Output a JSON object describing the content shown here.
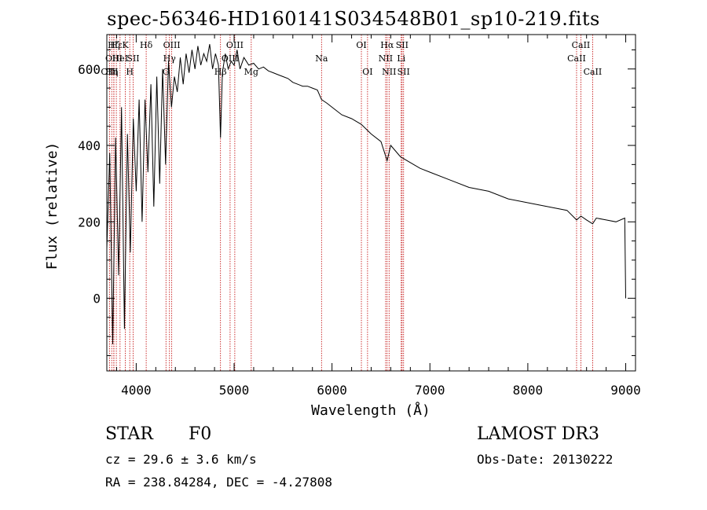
{
  "chart_data": {
    "type": "line",
    "title": "spec-56346-HD160141S034548B01_sp10-219.fits",
    "xlabel": "Wavelength (Å)",
    "ylabel": "Flux (relative)",
    "xlim": [
      3700,
      9100
    ],
    "ylim": [
      -190,
      690
    ],
    "xticks": [
      4000,
      5000,
      6000,
      7000,
      8000,
      9000
    ],
    "yticks": [
      0,
      200,
      400,
      600
    ],
    "series": [
      {
        "name": "flux",
        "x": [
          3700,
          3730,
          3760,
          3790,
          3820,
          3850,
          3880,
          3910,
          3940,
          3970,
          4000,
          4030,
          4060,
          4090,
          4120,
          4150,
          4180,
          4210,
          4240,
          4270,
          4300,
          4330,
          4360,
          4390,
          4420,
          4450,
          4480,
          4510,
          4540,
          4570,
          4600,
          4630,
          4660,
          4690,
          4720,
          4750,
          4780,
          4810,
          4840,
          4861,
          4880,
          4910,
          4940,
          4970,
          5000,
          5030,
          5060,
          5100,
          5150,
          5200,
          5250,
          5300,
          5350,
          5400,
          5450,
          5500,
          5550,
          5600,
          5650,
          5700,
          5750,
          5800,
          5850,
          5893,
          5950,
          6000,
          6100,
          6200,
          6300,
          6400,
          6500,
          6563,
          6600,
          6700,
          6800,
          6900,
          7000,
          7200,
          7400,
          7600,
          7800,
          8000,
          8200,
          8400,
          8498,
          8542,
          8600,
          8662,
          8700,
          8800,
          8900,
          8990,
          9000
        ],
        "values": [
          130,
          380,
          -120,
          420,
          60,
          500,
          -80,
          430,
          120,
          470,
          280,
          520,
          200,
          520,
          330,
          560,
          240,
          580,
          300,
          600,
          350,
          620,
          500,
          580,
          540,
          630,
          560,
          640,
          590,
          650,
          600,
          660,
          610,
          640,
          620,
          665,
          600,
          640,
          610,
          420,
          590,
          640,
          600,
          620,
          610,
          650,
          600,
          630,
          610,
          615,
          600,
          605,
          595,
          590,
          585,
          580,
          575,
          565,
          560,
          555,
          555,
          550,
          545,
          520,
          510,
          500,
          480,
          470,
          455,
          430,
          410,
          360,
          400,
          370,
          355,
          340,
          330,
          310,
          290,
          280,
          260,
          250,
          240,
          230,
          205,
          215,
          205,
          195,
          210,
          205,
          200,
          210,
          0
        ]
      }
    ],
    "lines": [
      {
        "name": "OIII",
        "x": 3727,
        "row": 2
      },
      {
        "name": "Hη",
        "x": 3750,
        "row": 2
      },
      {
        "name": "Hζ",
        "x": 3771,
        "row": 0
      },
      {
        "name": "OIII",
        "x": 3772,
        "row": 1
      },
      {
        "name": "Hε",
        "x": 3797,
        "row": 0
      },
      {
        "name": "HeI",
        "x": 3835,
        "row": 1
      },
      {
        "name": "K",
        "x": 3889,
        "row": 0
      },
      {
        "name": "H",
        "x": 3934,
        "row": 2
      },
      {
        "name": "SII",
        "x": 3969,
        "row": 1
      },
      {
        "name": "Hδ",
        "x": 4102,
        "row": 0
      },
      {
        "name": "G",
        "x": 4304,
        "row": 2
      },
      {
        "name": "Hγ",
        "x": 4340,
        "row": 1
      },
      {
        "name": "OIII",
        "x": 4363,
        "row": 0
      },
      {
        "name": "Hβ",
        "x": 4861,
        "row": 2
      },
      {
        "name": "OIII",
        "x": 4959,
        "row": 1
      },
      {
        "name": "OIII",
        "x": 5007,
        "row": 0
      },
      {
        "name": "Mg",
        "x": 5175,
        "row": 2
      },
      {
        "name": "Na",
        "x": 5893,
        "row": 1
      },
      {
        "name": "OI",
        "x": 6300,
        "row": 0
      },
      {
        "name": "OI",
        "x": 6363,
        "row": 2
      },
      {
        "name": "NII",
        "x": 6548,
        "row": 1
      },
      {
        "name": "Hα",
        "x": 6563,
        "row": 0
      },
      {
        "name": "NII",
        "x": 6583,
        "row": 2
      },
      {
        "name": "Li",
        "x": 6707,
        "row": 1
      },
      {
        "name": "SII",
        "x": 6716,
        "row": 0
      },
      {
        "name": "SII",
        "x": 6731,
        "row": 2
      },
      {
        "name": "CaII",
        "x": 8498,
        "row": 1
      },
      {
        "name": "CaII",
        "x": 8542,
        "row": 0
      },
      {
        "name": "CaII",
        "x": 8662,
        "row": 2
      }
    ]
  },
  "info": {
    "type_label": "STAR",
    "subclass": "F0",
    "survey": "LAMOST DR3",
    "cz": "cz = 29.6 ± 3.6 km/s",
    "obs_date": "Obs-Date: 20130222",
    "coords": "RA = 238.84284, DEC =  -4.27808"
  }
}
